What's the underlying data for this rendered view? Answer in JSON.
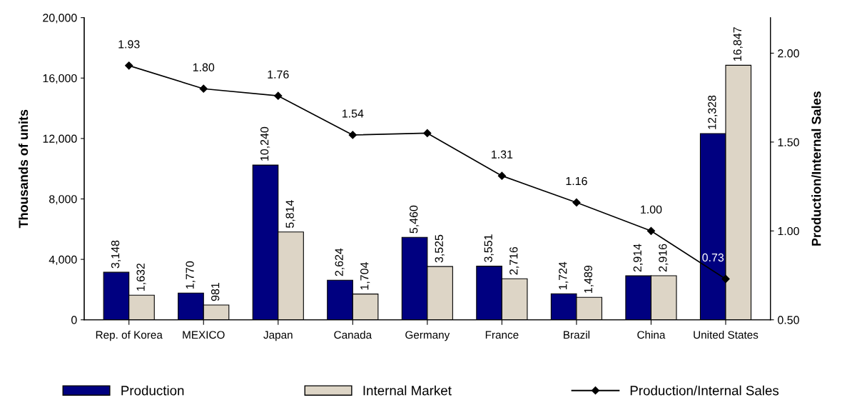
{
  "chart_data": {
    "type": "bar",
    "ylabel": "Thousands of units",
    "y2label": "Production/Internal Sales",
    "categories": [
      "Rep. of Korea",
      "MEXICO",
      "Japan",
      "Canada",
      "Germany",
      "France",
      "Brazil",
      "China",
      "United States"
    ],
    "series": [
      {
        "name": "Production",
        "color": "#000080",
        "values": [
          3148,
          1770,
          10240,
          2624,
          5460,
          3551,
          1724,
          2914,
          12328
        ],
        "value_labels": [
          "3,148",
          "1,770",
          "10,240",
          "2,624",
          "5,460",
          "3,551",
          "1,724",
          "2,914",
          "12,328"
        ]
      },
      {
        "name": "Internal Market",
        "color": "#ddd5c6",
        "values": [
          1632,
          981,
          5814,
          1704,
          3525,
          2716,
          1489,
          2916,
          16847
        ],
        "value_labels": [
          "1,632",
          "981",
          "5,814",
          "1,704",
          "3,525",
          "2,716",
          "1,489",
          "2,916",
          "16,847"
        ]
      },
      {
        "name": "Production/Internal Sales",
        "type": "line",
        "axis": "y2",
        "color": "#000000",
        "marker": "diamond",
        "values": [
          1.93,
          1.8,
          1.76,
          1.54,
          1.55,
          1.31,
          1.16,
          1.0,
          0.73
        ],
        "value_labels": [
          "1.93",
          "1.80",
          "1.76",
          "1.54",
          null,
          "1.31",
          "1.16",
          "1.00",
          "0.73"
        ]
      }
    ],
    "ylim": [
      0,
      20000
    ],
    "yticks": [
      {
        "value": 0,
        "label": "0"
      },
      {
        "value": 4000,
        "label": "4,000"
      },
      {
        "value": 8000,
        "label": "8,000"
      },
      {
        "value": 12000,
        "label": "12,000"
      },
      {
        "value": 16000,
        "label": "16,000"
      },
      {
        "value": 20000,
        "label": "20,000"
      }
    ],
    "y2lim": [
      0.5,
      2.2
    ],
    "y2ticks": [
      {
        "value": 0.5,
        "label": "0.50"
      },
      {
        "value": 1.0,
        "label": "1.00"
      },
      {
        "value": 1.5,
        "label": "1.50"
      },
      {
        "value": 2.0,
        "label": "2.00"
      }
    ],
    "grid": false,
    "legend": "bottom"
  }
}
